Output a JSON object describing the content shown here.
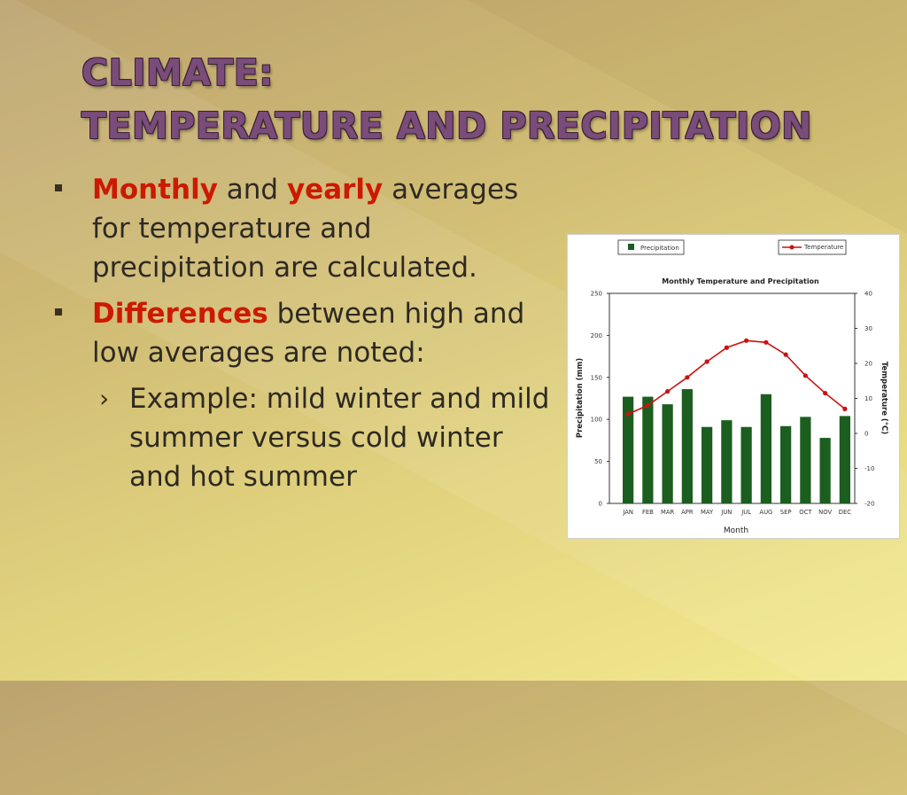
{
  "slide": {
    "title_line1": "CLIMATE:",
    "title_line2": "TEMPERATURE AND PRECIPITATION",
    "bullet1": {
      "hl1": "Monthly",
      "t1": " and ",
      "hl2": "yearly",
      "t2": " averages for temperature and precipitation are calculated."
    },
    "bullet2": {
      "hl1": "Differences",
      "t1": " between high and low averages are noted:"
    },
    "sub1": "Example:  mild winter and mild summer versus cold winter and hot summer",
    "sub_marker": "›"
  },
  "colors": {
    "title": "#7a4c7a",
    "highlight": "#cc1a00",
    "bar": "#1b5e20",
    "line": "#cc1111"
  },
  "chart_data": {
    "type": "bar",
    "title": "Monthly Temperature and Precipitation",
    "xlabel": "Month",
    "ylabel": "Precipitation (mm)",
    "y2label": "Temperature (°C)",
    "categories": [
      "JAN",
      "FEB",
      "MAR",
      "APR",
      "MAY",
      "JUN",
      "JUL",
      "AUG",
      "SEP",
      "OCT",
      "NOV",
      "DEC"
    ],
    "ylim": [
      0,
      250
    ],
    "yticks": [
      0,
      50,
      100,
      150,
      200,
      250
    ],
    "y2lim": [
      -20,
      40
    ],
    "y2ticks": [
      -20,
      -10,
      0,
      10,
      20,
      30,
      40
    ],
    "legend": [
      "Precipitation",
      "Temperature"
    ],
    "legend_placement": "top",
    "series": [
      {
        "name": "Precipitation",
        "type": "bar",
        "axis": "left",
        "values": [
          127,
          127,
          118,
          136,
          91,
          99,
          91,
          130,
          92,
          103,
          78,
          104
        ]
      },
      {
        "name": "Temperature",
        "type": "line",
        "axis": "right",
        "values": [
          5.5,
          8,
          12,
          16,
          20.5,
          24.5,
          26.5,
          26,
          22.5,
          16.5,
          11.5,
          7
        ]
      }
    ]
  }
}
